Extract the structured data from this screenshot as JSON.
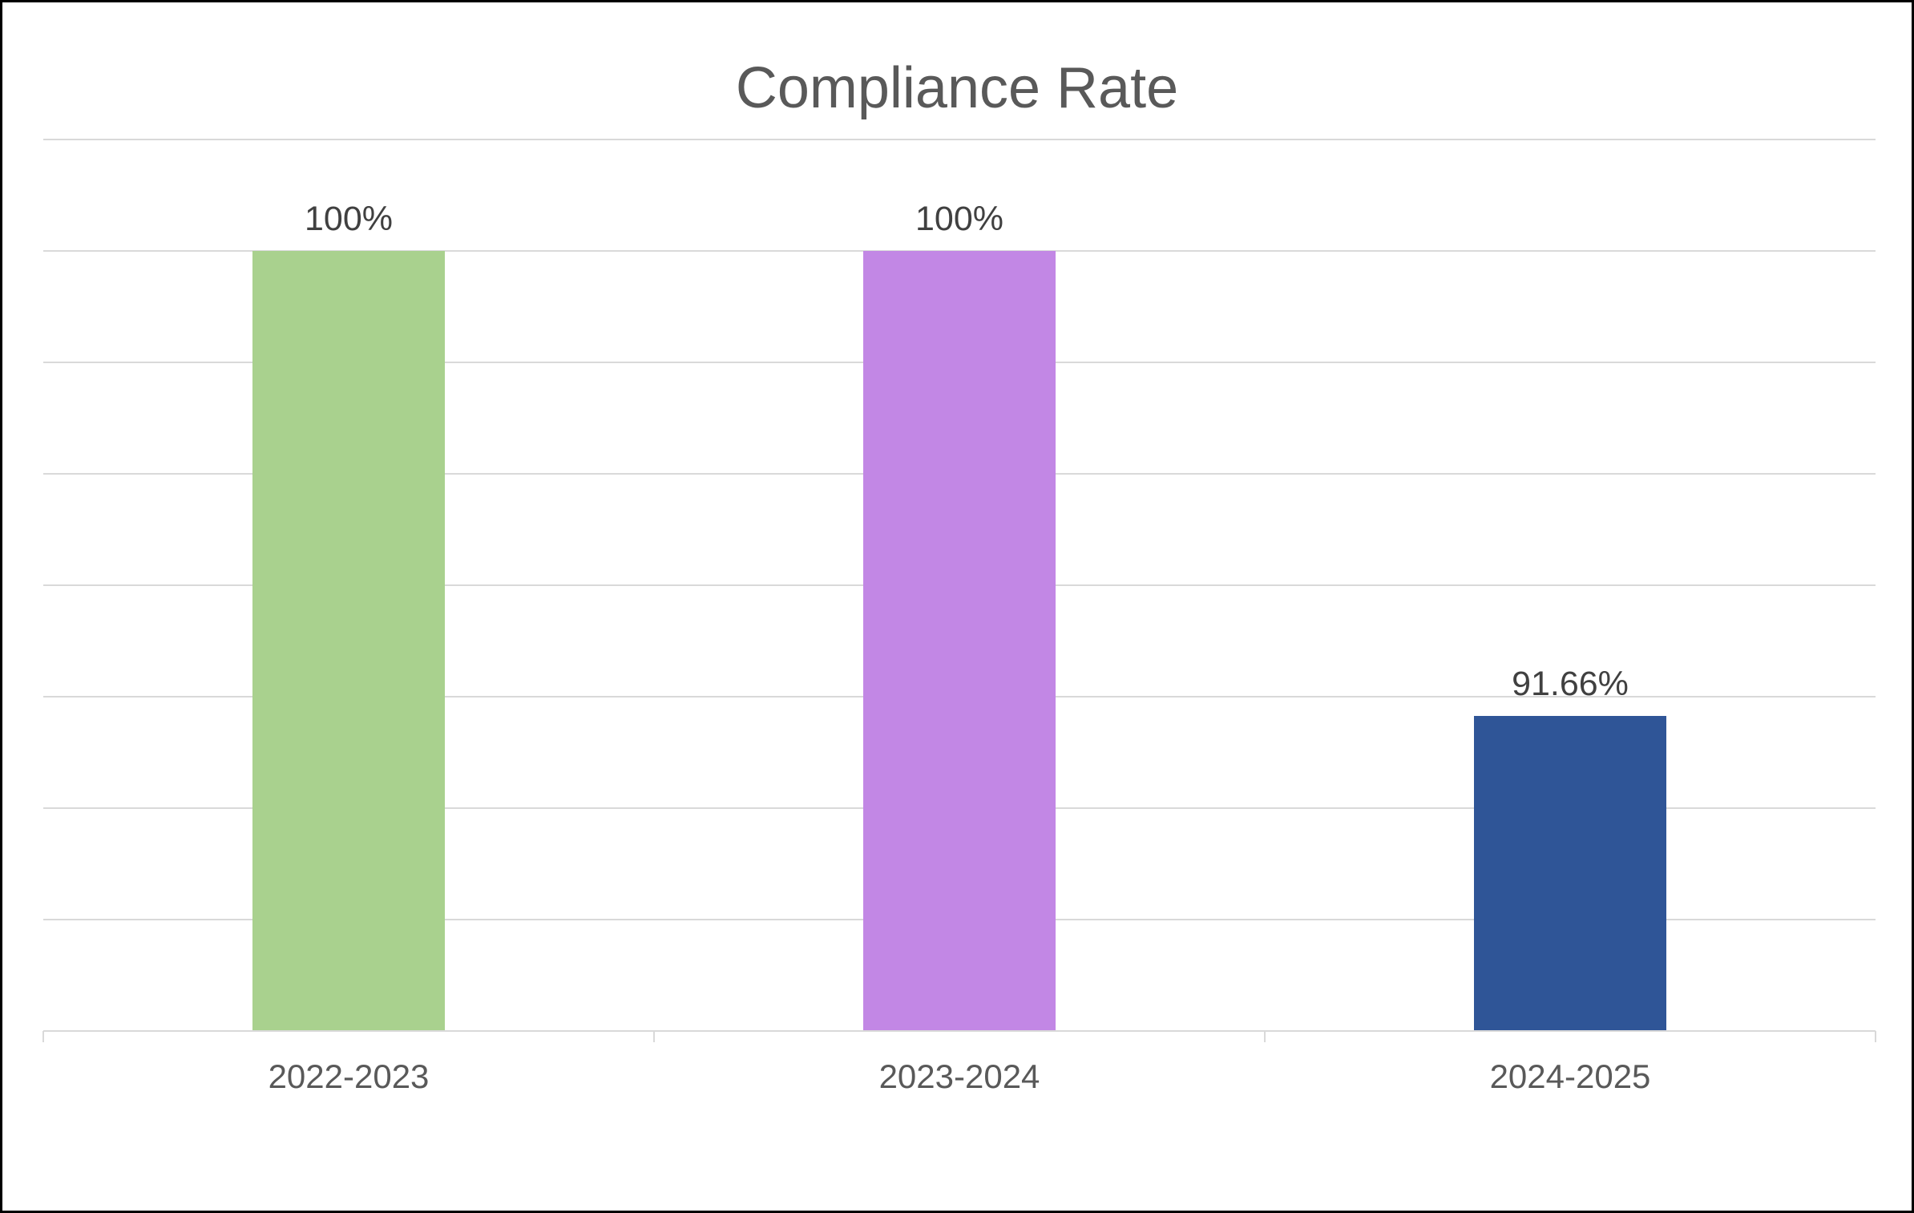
{
  "chart_data": {
    "type": "bar",
    "title": "Compliance Rate",
    "categories": [
      "2022-2023",
      "2023-2024",
      "2024-2025"
    ],
    "values": [
      100,
      100,
      91.66
    ],
    "data_labels": [
      "100%",
      "100%",
      "91.66%"
    ],
    "bar_colors": [
      "#A9D18E",
      "#C287E5",
      "#2F5597"
    ],
    "xlabel": "",
    "ylabel": "",
    "ylim": [
      86,
      102
    ],
    "gridline_step": 2,
    "y_tick_labels_visible": false,
    "grid": "horizontal",
    "legend": "none",
    "colors": {
      "gridline": "#D9D9D9",
      "axis_line": "#D9D9D9",
      "title_text": "#595959",
      "data_label_text": "#404040",
      "axis_label_text": "#595959",
      "background": "#FFFFFF",
      "frame_border": "#000000"
    }
  }
}
